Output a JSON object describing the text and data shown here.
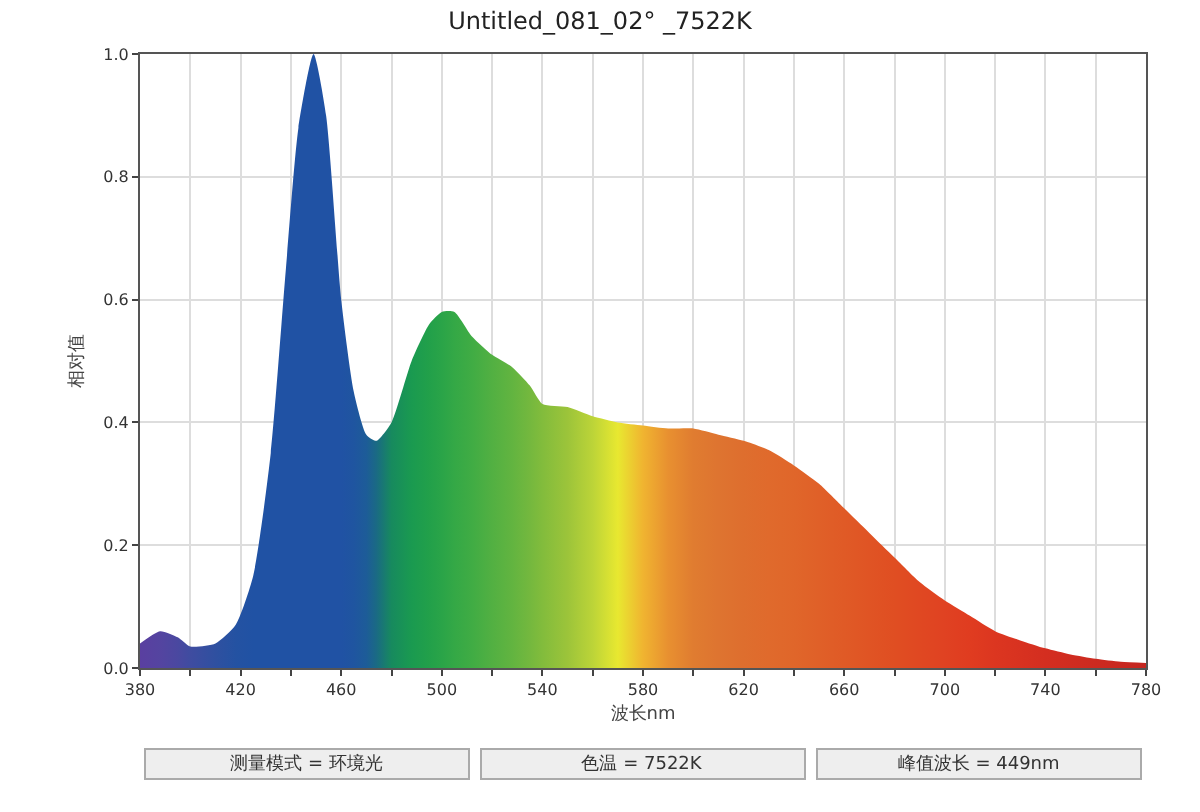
{
  "chart_data": {
    "type": "area",
    "title": "Untitled_081_02° _7522K",
    "xlabel": "波长nm",
    "ylabel": "相对值",
    "x": [
      380,
      388,
      395,
      400,
      410,
      418,
      425,
      432,
      438,
      443,
      449,
      454,
      460,
      465,
      470,
      474,
      480,
      488,
      495,
      500,
      505,
      512,
      520,
      528,
      535,
      540,
      550,
      560,
      570,
      580,
      590,
      600,
      610,
      620,
      630,
      640,
      650,
      660,
      670,
      680,
      690,
      700,
      710,
      720,
      730,
      740,
      750,
      760,
      770,
      780
    ],
    "series": [
      {
        "values": [
          0.04,
          0.06,
          0.05,
          0.035,
          0.04,
          0.07,
          0.15,
          0.35,
          0.65,
          0.88,
          1.0,
          0.9,
          0.6,
          0.45,
          0.38,
          0.37,
          0.4,
          0.5,
          0.56,
          0.58,
          0.58,
          0.54,
          0.51,
          0.49,
          0.46,
          0.43,
          0.425,
          0.41,
          0.4,
          0.395,
          0.39,
          0.39,
          0.38,
          0.37,
          0.355,
          0.33,
          0.3,
          0.26,
          0.22,
          0.18,
          0.14,
          0.11,
          0.085,
          0.06,
          0.045,
          0.032,
          0.022,
          0.015,
          0.01,
          0.008
        ],
        "colors": [
          "#5a3fa0",
          "#5444a0",
          "#4a48a0",
          "#3f4ca0",
          "#2f50a0",
          "#2452a2",
          "#2052a4",
          "#2052a4",
          "#2052a4",
          "#2052a4",
          "#2052a4",
          "#2052a4",
          "#2052a4",
          "#1f55a0",
          "#1d5c98",
          "#1a6a84",
          "#178a5e",
          "#1a9a50",
          "#22a04a",
          "#2aa448",
          "#34a846",
          "#40ac44",
          "#52b042",
          "#62b440",
          "#74b83e",
          "#82bc3c",
          "#9cc43a",
          "#bcd438",
          "#e8e830",
          "#f0b430",
          "#e89030",
          "#e07c30",
          "#de7430",
          "#de6e2e",
          "#e06a2c",
          "#e0662a",
          "#e06028",
          "#e05a26",
          "#e05424",
          "#e04e22",
          "#e04822",
          "#e04222",
          "#e03c20",
          "#dc3620",
          "#d83220",
          "#d42e20",
          "#d02c20",
          "#cc2a20",
          "#c82820",
          "#c42620"
        ]
      }
    ],
    "xlim": [
      380,
      780
    ],
    "ylim": [
      0,
      1.0
    ],
    "xticks": [
      380,
      {
        "value": 400,
        "label": null
      },
      420,
      {
        "value": 440,
        "label": null
      },
      460,
      {
        "value": 480,
        "label": null
      },
      500,
      {
        "value": 520,
        "label": null
      },
      540,
      {
        "value": 560,
        "label": null
      },
      580,
      {
        "value": 600,
        "label": null
      },
      620,
      {
        "value": 640,
        "label": null
      },
      660,
      {
        "value": 680,
        "label": null
      },
      700,
      {
        "value": 720,
        "label": null
      },
      740,
      {
        "value": 760,
        "label": null
      },
      780
    ],
    "yticks": [
      {
        "value": 0,
        "label": "0.0"
      },
      0.2,
      0.4,
      0.6,
      0.8,
      {
        "value": 1,
        "label": "1.0"
      }
    ],
    "grid": true,
    "annotations": [
      "测量模式 = 环境光",
      "色温 = 7522K",
      "峰值波长 = 449nm"
    ]
  }
}
